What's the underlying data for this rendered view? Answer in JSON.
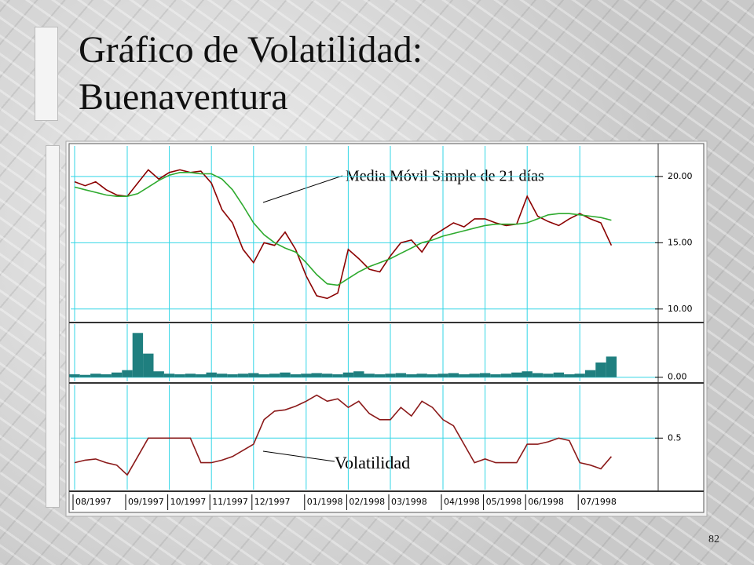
{
  "slide": {
    "title": "Gráfico de Volatilidad: Buenaventura",
    "page_number": "82"
  },
  "chart_data": {
    "type": "stock-panels",
    "grid": true,
    "categories": [
      "08/1997",
      null,
      null,
      null,
      null,
      "09/1997",
      null,
      null,
      null,
      "10/1997",
      null,
      null,
      null,
      "11/1997",
      null,
      null,
      null,
      "12/1997",
      null,
      null,
      null,
      null,
      "01/1998",
      null,
      null,
      null,
      "02/1998",
      null,
      null,
      null,
      "03/1998",
      null,
      null,
      null,
      null,
      "04/1998",
      null,
      null,
      null,
      "05/1998",
      null,
      null,
      null,
      "06/1998",
      null,
      null,
      null,
      null,
      "07/1998",
      null,
      null,
      null
    ],
    "annotations": [
      "Media Móvil Simple de 21 días",
      "Volatilidad"
    ],
    "panels": [
      {
        "type": "line",
        "ylim": [
          9.1,
          22.3
        ],
        "yticks": [
          {
            "value": 10,
            "label": "10.00"
          },
          {
            "value": 15,
            "label": "15.00"
          },
          {
            "value": 20,
            "label": "20.00"
          }
        ],
        "series": [
          {
            "color": "#8b0000",
            "values": [
              19.6,
              19.3,
              19.6,
              19.0,
              18.6,
              18.5,
              19.5,
              20.5,
              19.8,
              20.3,
              20.5,
              20.3,
              20.4,
              19.5,
              17.5,
              16.5,
              14.5,
              13.5,
              15.0,
              14.8,
              15.8,
              14.5,
              12.5,
              11.0,
              10.8,
              11.2,
              14.5,
              13.8,
              13.0,
              12.8,
              14.0,
              15.0,
              15.2,
              14.3,
              15.5,
              16.0,
              16.5,
              16.2,
              16.8,
              16.8,
              16.5,
              16.3,
              16.4,
              18.5,
              17.0,
              16.6,
              16.3,
              16.8,
              17.2,
              16.8,
              16.5,
              14.8
            ]
          },
          {
            "color": "#2eaa2e",
            "values": [
              19.2,
              19.0,
              18.8,
              18.6,
              18.5,
              18.5,
              18.7,
              19.2,
              19.7,
              20.1,
              20.3,
              20.3,
              20.2,
              20.2,
              19.8,
              19.0,
              17.8,
              16.5,
              15.6,
              15.0,
              14.6,
              14.3,
              13.5,
              12.6,
              11.9,
              11.8,
              12.3,
              12.8,
              13.2,
              13.5,
              13.8,
              14.2,
              14.6,
              15.0,
              15.2,
              15.5,
              15.7,
              15.9,
              16.1,
              16.3,
              16.4,
              16.4,
              16.4,
              16.5,
              16.8,
              17.1,
              17.2,
              17.2,
              17.1,
              17.0,
              16.9,
              16.7
            ]
          }
        ]
      },
      {
        "type": "bar",
        "ylim": [
          -7,
          90
        ],
        "yticks": [
          {
            "value": 0,
            "label": "0.00"
          }
        ],
        "series": [
          {
            "color": "#1f7f7f",
            "values": [
              5,
              4,
              6,
              5,
              8,
              12,
              75,
              40,
              10,
              6,
              5,
              6,
              5,
              8,
              6,
              5,
              6,
              7,
              5,
              6,
              8,
              5,
              6,
              7,
              6,
              5,
              8,
              10,
              6,
              5,
              6,
              7,
              5,
              6,
              5,
              6,
              7,
              5,
              6,
              7,
              5,
              6,
              8,
              10,
              7,
              6,
              8,
              5,
              6,
              12,
              25,
              35
            ]
          }
        ]
      },
      {
        "type": "line",
        "ylim": [
          0.08,
          0.93
        ],
        "yticks": [
          0.5
        ],
        "series": [
          {
            "color": "#8b1a1a",
            "values": [
              0.3,
              0.32,
              0.33,
              0.3,
              0.28,
              0.2,
              0.35,
              0.5,
              0.5,
              0.5,
              0.5,
              0.5,
              0.3,
              0.3,
              0.32,
              0.35,
              0.4,
              0.45,
              0.65,
              0.72,
              0.73,
              0.76,
              0.8,
              0.85,
              0.8,
              0.82,
              0.75,
              0.8,
              0.7,
              0.65,
              0.65,
              0.75,
              0.68,
              0.8,
              0.75,
              0.65,
              0.6,
              0.45,
              0.3,
              0.33,
              0.3,
              0.3,
              0.3,
              0.45,
              0.45,
              0.47,
              0.5,
              0.48,
              0.3,
              0.28,
              0.25,
              0.35
            ]
          }
        ]
      }
    ]
  }
}
